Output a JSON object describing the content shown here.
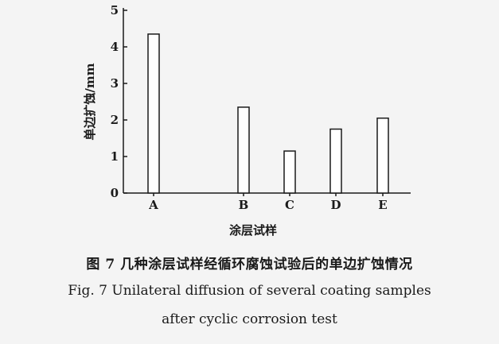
{
  "chart_data": {
    "type": "bar",
    "categories": [
      "A",
      "B",
      "C",
      "D",
      "E"
    ],
    "values": [
      4.35,
      2.35,
      1.15,
      1.75,
      2.05
    ],
    "xlabel": "涂层试样",
    "ylabel": "单边扩蚀/mm",
    "ylim": [
      0,
      5
    ],
    "yticks": [
      "0",
      "1",
      "2",
      "3",
      "4",
      "5"
    ],
    "grid": false,
    "legend": "none"
  },
  "caption": {
    "chinese": "图 7   几种涂层试样经循环腐蚀试验后的单边扩蚀情况",
    "english_line1": "Fig. 7   Unilateral diffusion of several coating samples",
    "english_line2": "after cyclic corrosion test"
  }
}
